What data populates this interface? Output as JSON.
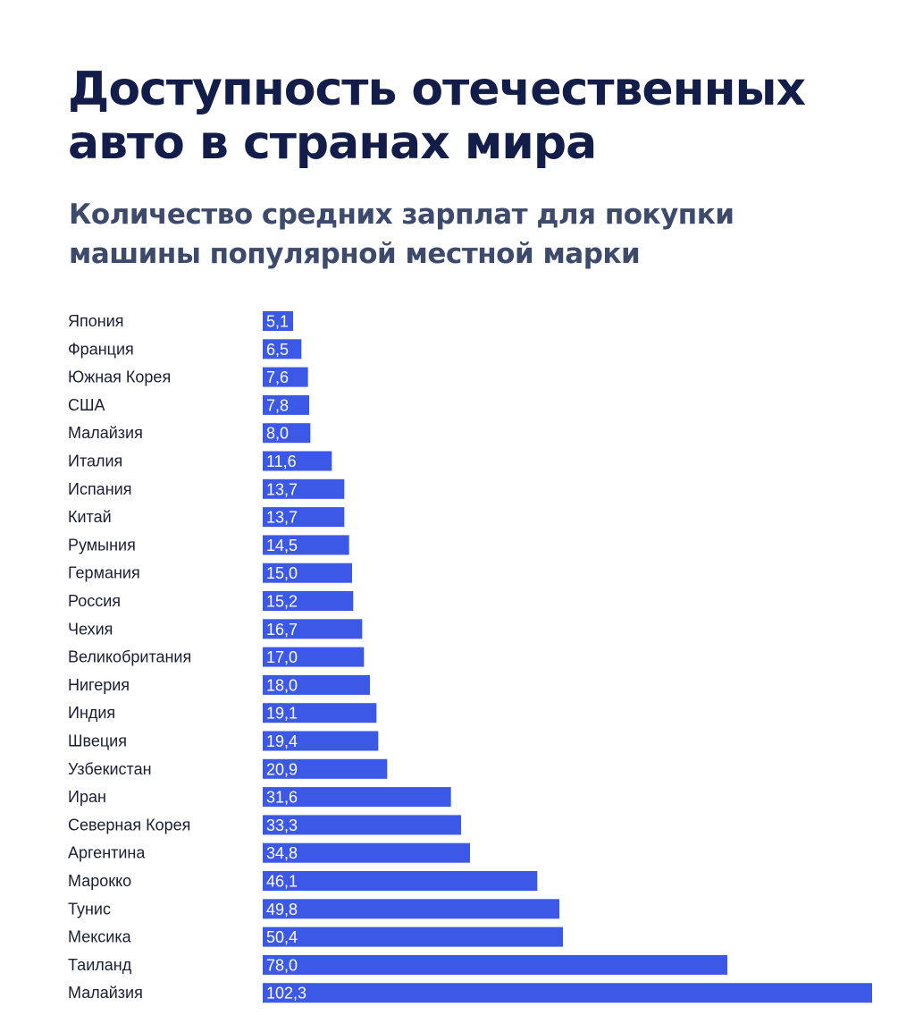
{
  "title": "Доступность отечественных авто в странах мира",
  "subtitle": "Количество средних зарплат для покупки машины популярной местной марки",
  "colors": {
    "bar": "#3b58e6",
    "title": "#121d4a",
    "subtitle": "#3d4a6b",
    "label": "#1a1f36"
  },
  "chart_data": {
    "type": "bar",
    "orientation": "horizontal",
    "title": "Доступность отечественных авто в странах мира",
    "subtitle": "Количество средних зарплат для покупки машины популярной местной марки",
    "xlabel": "",
    "ylabel": "",
    "grid": false,
    "legend": "none",
    "xlim": [
      0,
      102.3
    ],
    "categories": [
      "Япония",
      "Франция",
      "Южная Корея",
      "США",
      "Малайзия",
      "Италия",
      "Испания",
      "Китай",
      "Румыния",
      "Германия",
      "Россия",
      "Чехия",
      "Великобритания",
      "Нигерия",
      "Индия",
      "Швеция",
      "Узбекистан",
      "Иран",
      "Северная Корея",
      "Аргентина",
      "Марокко",
      "Тунис",
      "Мексика",
      "Таиланд",
      "Малайзия"
    ],
    "values": [
      5.1,
      6.5,
      7.6,
      7.8,
      8.0,
      11.6,
      13.7,
      13.7,
      14.5,
      15.0,
      15.2,
      16.7,
      17.0,
      18.0,
      19.1,
      19.4,
      20.9,
      31.6,
      33.3,
      34.8,
      46.1,
      49.8,
      50.4,
      78.0,
      102.3
    ],
    "value_labels": [
      "5,1",
      "6,5",
      "7,6",
      "7,8",
      "8,0",
      "11,6",
      "13,7",
      "13,7",
      "14,5",
      "15,0",
      "15,2",
      "16,7",
      "17,0",
      "18,0",
      "19,1",
      "19,4",
      "20,9",
      "31,6",
      "33,3",
      "34,8",
      "46,1",
      "49,8",
      "50,4",
      "78,0",
      "102,3"
    ]
  }
}
